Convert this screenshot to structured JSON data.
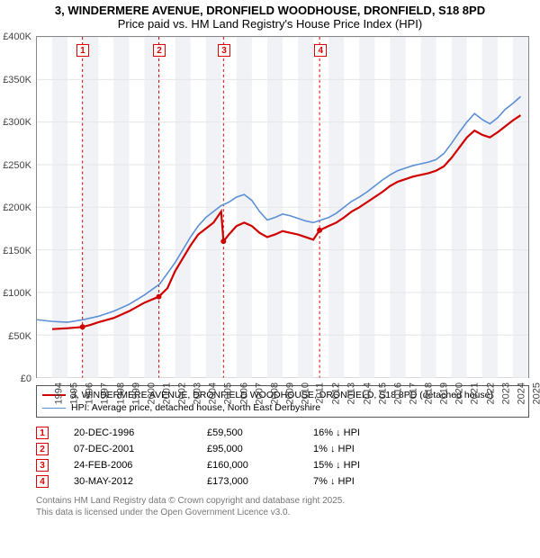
{
  "title_line1": "3, WINDERMERE AVENUE, DRONFIELD WOODHOUSE, DRONFIELD, S18 8PD",
  "title_line2": "Price paid vs. HM Land Registry's House Price Index (HPI)",
  "title_fontsize": 13,
  "chart": {
    "type": "line",
    "x_domain": [
      1994,
      2026
    ],
    "y_domain": [
      0,
      400000
    ],
    "ytick_step": 50000,
    "ytick_prefix": "£",
    "ytick_labels": [
      "£0",
      "£50K",
      "£100K",
      "£150K",
      "£200K",
      "£250K",
      "£300K",
      "£350K",
      "£400K"
    ],
    "xtick_years": [
      1994,
      1995,
      1996,
      1997,
      1998,
      1999,
      2000,
      2001,
      2002,
      2003,
      2004,
      2005,
      2006,
      2007,
      2008,
      2009,
      2010,
      2011,
      2012,
      2013,
      2014,
      2015,
      2016,
      2017,
      2018,
      2019,
      2020,
      2021,
      2022,
      2023,
      2024,
      2025
    ],
    "background_color": "#ffffff",
    "grid_color": "#e6e6e6",
    "axis_color": "#888888",
    "band_fill": "#f0f2f6",
    "sale_marker_line_color": "#d00000",
    "sale_marker_dash": "3,3",
    "series": [
      {
        "name": "property",
        "label": "3, WINDERMERE AVENUE, DRONFIELD WOODHOUSE, DRONFIELD, S18 8PD (detached house)",
        "color": "#d00000",
        "width": 2.2,
        "points": [
          [
            1995.0,
            57000
          ],
          [
            1996.0,
            58000
          ],
          [
            1996.97,
            59500
          ],
          [
            1997.5,
            62000
          ],
          [
            1998.0,
            65000
          ],
          [
            1999.0,
            70000
          ],
          [
            2000.0,
            78000
          ],
          [
            2001.0,
            88000
          ],
          [
            2001.94,
            95000
          ],
          [
            2002.5,
            105000
          ],
          [
            2003.0,
            125000
          ],
          [
            2003.5,
            140000
          ],
          [
            2004.0,
            155000
          ],
          [
            2004.5,
            168000
          ],
          [
            2005.0,
            175000
          ],
          [
            2005.5,
            182000
          ],
          [
            2006.0,
            195000
          ],
          [
            2006.15,
            160000
          ],
          [
            2006.5,
            168000
          ],
          [
            2007.0,
            178000
          ],
          [
            2007.5,
            182000
          ],
          [
            2008.0,
            178000
          ],
          [
            2008.5,
            170000
          ],
          [
            2009.0,
            165000
          ],
          [
            2009.5,
            168000
          ],
          [
            2010.0,
            172000
          ],
          [
            2010.5,
            170000
          ],
          [
            2011.0,
            168000
          ],
          [
            2011.5,
            165000
          ],
          [
            2012.0,
            162000
          ],
          [
            2012.41,
            173000
          ],
          [
            2013.0,
            178000
          ],
          [
            2013.5,
            182000
          ],
          [
            2014.0,
            188000
          ],
          [
            2014.5,
            195000
          ],
          [
            2015.0,
            200000
          ],
          [
            2015.5,
            206000
          ],
          [
            2016.0,
            212000
          ],
          [
            2016.5,
            218000
          ],
          [
            2017.0,
            225000
          ],
          [
            2017.5,
            230000
          ],
          [
            2018.0,
            233000
          ],
          [
            2018.5,
            236000
          ],
          [
            2019.0,
            238000
          ],
          [
            2019.5,
            240000
          ],
          [
            2020.0,
            243000
          ],
          [
            2020.5,
            248000
          ],
          [
            2021.0,
            258000
          ],
          [
            2021.5,
            270000
          ],
          [
            2022.0,
            282000
          ],
          [
            2022.5,
            290000
          ],
          [
            2023.0,
            285000
          ],
          [
            2023.5,
            282000
          ],
          [
            2024.0,
            288000
          ],
          [
            2024.5,
            295000
          ],
          [
            2025.0,
            302000
          ],
          [
            2025.5,
            308000
          ]
        ]
      },
      {
        "name": "hpi",
        "label": "HPI: Average price, detached house, North East Derbyshire",
        "color": "#5b8fd6",
        "width": 1.6,
        "points": [
          [
            1994.0,
            68000
          ],
          [
            1995.0,
            66000
          ],
          [
            1996.0,
            65000
          ],
          [
            1997.0,
            68000
          ],
          [
            1998.0,
            72000
          ],
          [
            1999.0,
            78000
          ],
          [
            2000.0,
            86000
          ],
          [
            2001.0,
            97000
          ],
          [
            2002.0,
            110000
          ],
          [
            2003.0,
            135000
          ],
          [
            2003.5,
            150000
          ],
          [
            2004.0,
            165000
          ],
          [
            2004.5,
            178000
          ],
          [
            2005.0,
            188000
          ],
          [
            2005.5,
            195000
          ],
          [
            2006.0,
            202000
          ],
          [
            2006.5,
            206000
          ],
          [
            2007.0,
            212000
          ],
          [
            2007.5,
            215000
          ],
          [
            2008.0,
            208000
          ],
          [
            2008.5,
            195000
          ],
          [
            2009.0,
            185000
          ],
          [
            2009.5,
            188000
          ],
          [
            2010.0,
            192000
          ],
          [
            2010.5,
            190000
          ],
          [
            2011.0,
            187000
          ],
          [
            2011.5,
            184000
          ],
          [
            2012.0,
            182000
          ],
          [
            2012.5,
            185000
          ],
          [
            2013.0,
            188000
          ],
          [
            2013.5,
            193000
          ],
          [
            2014.0,
            200000
          ],
          [
            2014.5,
            207000
          ],
          [
            2015.0,
            212000
          ],
          [
            2015.5,
            218000
          ],
          [
            2016.0,
            225000
          ],
          [
            2016.5,
            232000
          ],
          [
            2017.0,
            238000
          ],
          [
            2017.5,
            243000
          ],
          [
            2018.0,
            246000
          ],
          [
            2018.5,
            249000
          ],
          [
            2019.0,
            251000
          ],
          [
            2019.5,
            253000
          ],
          [
            2020.0,
            256000
          ],
          [
            2020.5,
            263000
          ],
          [
            2021.0,
            275000
          ],
          [
            2021.5,
            288000
          ],
          [
            2022.0,
            300000
          ],
          [
            2022.5,
            310000
          ],
          [
            2023.0,
            303000
          ],
          [
            2023.5,
            298000
          ],
          [
            2024.0,
            305000
          ],
          [
            2024.5,
            315000
          ],
          [
            2025.0,
            322000
          ],
          [
            2025.5,
            330000
          ]
        ]
      }
    ],
    "sale_markers": [
      {
        "n": 1,
        "year": 1996.97,
        "price": 59500
      },
      {
        "n": 2,
        "year": 2001.94,
        "price": 95000
      },
      {
        "n": 3,
        "year": 2006.15,
        "price": 160000
      },
      {
        "n": 4,
        "year": 2012.41,
        "price": 173000
      }
    ]
  },
  "legend": {
    "border_color": "#555555"
  },
  "sales": [
    {
      "n": 1,
      "date": "20-DEC-1996",
      "price": "£59,500",
      "diff": "16%",
      "dir": "down",
      "vs": "HPI"
    },
    {
      "n": 2,
      "date": "07-DEC-2001",
      "price": "£95,000",
      "diff": "1%",
      "dir": "down",
      "vs": "HPI"
    },
    {
      "n": 3,
      "date": "24-FEB-2006",
      "price": "£160,000",
      "diff": "15%",
      "dir": "down",
      "vs": "HPI"
    },
    {
      "n": 4,
      "date": "30-MAY-2012",
      "price": "£173,000",
      "diff": "7%",
      "dir": "down",
      "vs": "HPI"
    }
  ],
  "footer_line1": "Contains HM Land Registry data © Crown copyright and database right 2025.",
  "footer_line2": "This data is licensed under the Open Government Licence v3.0."
}
